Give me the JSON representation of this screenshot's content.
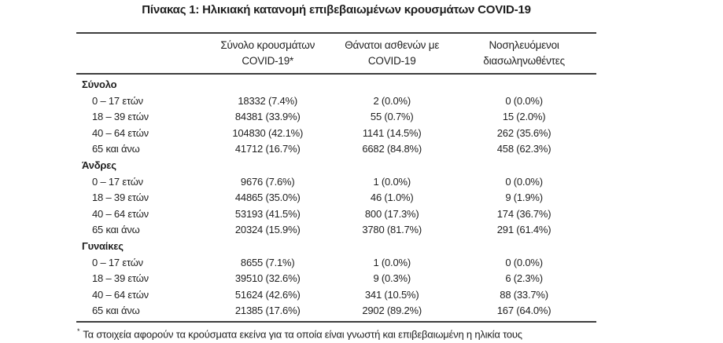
{
  "title": "Πίνακας 1: Ηλικιακή κατανομή επιβεβαιωμένων κρουσμάτων COVID-19",
  "colors": {
    "text": "#1f1f1f",
    "rule": "#3d3d3d",
    "background": "#ffffff"
  },
  "table": {
    "columns": [
      {
        "line1": "Σύνολο κρουσμάτων",
        "line2": "COVID-19*"
      },
      {
        "line1": "Θάνατοι ασθενών με",
        "line2": "COVID-19"
      },
      {
        "line1": "Νοσηλευόμενοι",
        "line2": "διασωληνωθέντες"
      }
    ],
    "sections": [
      {
        "label": "Σύνολο",
        "rows": [
          {
            "label": "0 – 17 ετών",
            "cases": "18332 (7.4%)",
            "deaths": "2 (0.0%)",
            "intubated": "0 (0.0%)"
          },
          {
            "label": "18 – 39 ετών",
            "cases": "84381 (33.9%)",
            "deaths": "55 (0.7%)",
            "intubated": "15 (2.0%)"
          },
          {
            "label": "40 – 64 ετών",
            "cases": "104830 (42.1%)",
            "deaths": "1141 (14.5%)",
            "intubated": "262 (35.6%)"
          },
          {
            "label": "65 και άνω",
            "cases": "41712 (16.7%)",
            "deaths": "6682 (84.8%)",
            "intubated": "458 (62.3%)"
          }
        ]
      },
      {
        "label": "Άνδρες",
        "rows": [
          {
            "label": "0 – 17 ετών",
            "cases": "9676 (7.6%)",
            "deaths": "1 (0.0%)",
            "intubated": "0 (0.0%)"
          },
          {
            "label": "18 – 39 ετών",
            "cases": "44865 (35.0%)",
            "deaths": "46 (1.0%)",
            "intubated": "9 (1.9%)"
          },
          {
            "label": "40 – 64 ετών",
            "cases": "53193 (41.5%)",
            "deaths": "800 (17.3%)",
            "intubated": "174 (36.7%)"
          },
          {
            "label": "65 και άνω",
            "cases": "20324 (15.9%)",
            "deaths": "3780 (81.7%)",
            "intubated": "291 (61.4%)"
          }
        ]
      },
      {
        "label": "Γυναίκες",
        "rows": [
          {
            "label": "0 – 17 ετών",
            "cases": "8655 (7.1%)",
            "deaths": "1 (0.0%)",
            "intubated": "0 (0.0%)"
          },
          {
            "label": "18 – 39 ετών",
            "cases": "39510 (32.6%)",
            "deaths": "9 (0.3%)",
            "intubated": "6 (2.3%)"
          },
          {
            "label": "40 – 64 ετών",
            "cases": "51624 (42.6%)",
            "deaths": "341 (10.5%)",
            "intubated": "88 (33.7%)"
          },
          {
            "label": "65 και άνω",
            "cases": "21385 (17.6%)",
            "deaths": "2902 (89.2%)",
            "intubated": "167 (64.0%)"
          }
        ]
      }
    ]
  },
  "footnote": {
    "marker": "*",
    "text": "Τα στοιχεία αφορούν τα κρούσματα εκείνα για τα οποία είναι γνωστή και επιβεβαιωμένη η ηλικία τους"
  }
}
